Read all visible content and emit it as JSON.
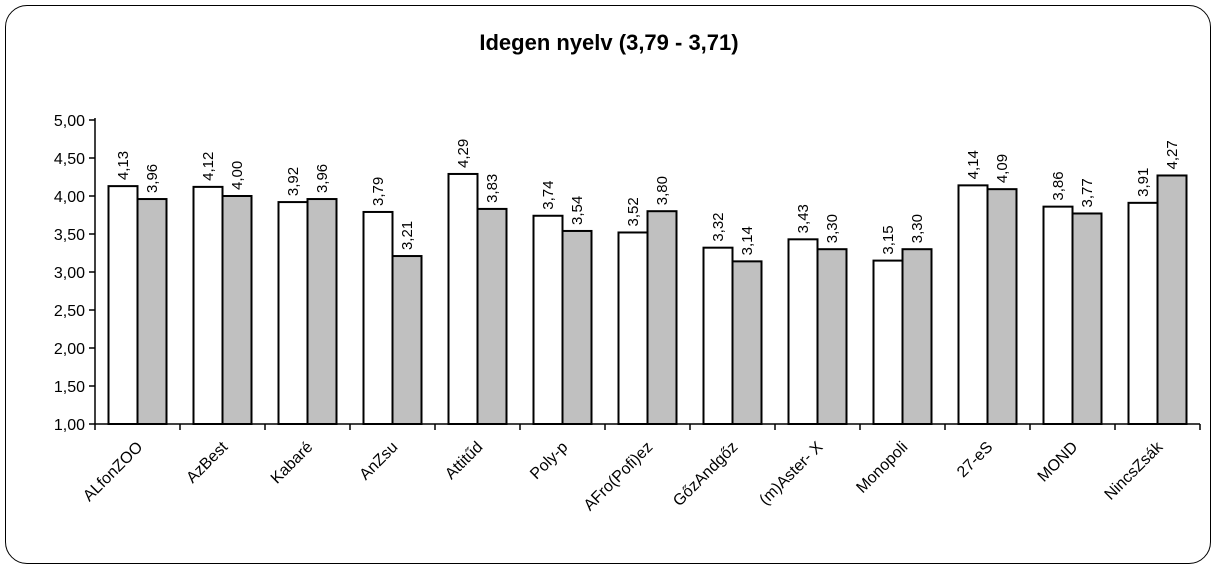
{
  "chart_data": {
    "type": "bar",
    "title": "Idegen nyelv (3,79 - 3,71)",
    "xlabel": "",
    "ylabel": "",
    "ylim": [
      1.0,
      5.0
    ],
    "yticks": [
      "1,00",
      "1,50",
      "2,00",
      "2,50",
      "3,00",
      "3,50",
      "4,00",
      "4,50",
      "5,00"
    ],
    "grid": false,
    "legend": "none",
    "categories": [
      "ALfonZOO",
      "AzBest",
      "Kabaré",
      "AnZsu",
      "Attitűd",
      "Poly-p",
      "AFro(Pofi)ez",
      "GőzAndgőz",
      "(m)Aster- X",
      "Monopoli",
      "27-eS",
      "MOND",
      "NincsZsák"
    ],
    "series": [
      {
        "color": "#ffffff",
        "values": [
          4.13,
          4.12,
          3.92,
          3.79,
          4.29,
          3.74,
          3.52,
          3.32,
          3.43,
          3.15,
          4.14,
          3.86,
          3.91
        ],
        "labels": [
          "4,13",
          "4,12",
          "3,92",
          "3,79",
          "4,29",
          "3,74",
          "3,52",
          "3,32",
          "3,43",
          "3,15",
          "4,14",
          "3,86",
          "3,91"
        ]
      },
      {
        "color": "#c0c0c0",
        "values": [
          3.96,
          4.0,
          3.96,
          3.21,
          3.83,
          3.54,
          3.8,
          3.14,
          3.3,
          3.3,
          4.09,
          3.77,
          4.27
        ],
        "labels": [
          "3,96",
          "4,00",
          "3,96",
          "3,21",
          "3,83",
          "3,54",
          "3,80",
          "3,14",
          "3,30",
          "3,30",
          "4,09",
          "3,77",
          "4,27"
        ]
      }
    ]
  }
}
